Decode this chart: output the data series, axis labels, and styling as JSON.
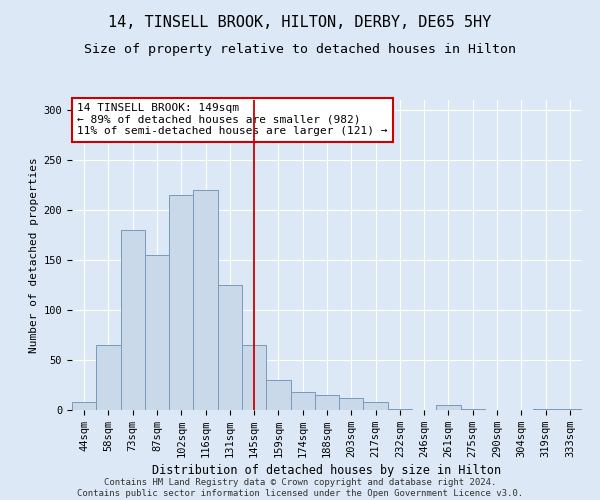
{
  "title": "14, TINSELL BROOK, HILTON, DERBY, DE65 5HY",
  "subtitle": "Size of property relative to detached houses in Hilton",
  "xlabel": "Distribution of detached houses by size in Hilton",
  "ylabel": "Number of detached properties",
  "categories": [
    "44sqm",
    "58sqm",
    "73sqm",
    "87sqm",
    "102sqm",
    "116sqm",
    "131sqm",
    "145sqm",
    "159sqm",
    "174sqm",
    "188sqm",
    "203sqm",
    "217sqm",
    "232sqm",
    "246sqm",
    "261sqm",
    "275sqm",
    "290sqm",
    "304sqm",
    "319sqm",
    "333sqm"
  ],
  "values": [
    8,
    65,
    180,
    155,
    215,
    220,
    125,
    65,
    30,
    18,
    15,
    12,
    8,
    1,
    0,
    5,
    1,
    0,
    0,
    1,
    1
  ],
  "bar_color": "#c9d9ea",
  "bar_edge_color": "#7799bb",
  "vline_x": 7,
  "vline_color": "#cc0000",
  "annotation_text": "14 TINSELL BROOK: 149sqm\n← 89% of detached houses are smaller (982)\n11% of semi-detached houses are larger (121) →",
  "annotation_box_color": "#ffffff",
  "annotation_box_edge_color": "#cc0000",
  "bg_color": "#dce8f5",
  "plot_bg_color": "#dce8f5",
  "grid_color": "#ffffff",
  "footer_line1": "Contains HM Land Registry data © Crown copyright and database right 2024.",
  "footer_line2": "Contains public sector information licensed under the Open Government Licence v3.0.",
  "ylim": [
    0,
    310
  ],
  "yticks": [
    0,
    50,
    100,
    150,
    200,
    250,
    300
  ],
  "title_fontsize": 11,
  "subtitle_fontsize": 9.5,
  "xlabel_fontsize": 8.5,
  "ylabel_fontsize": 8,
  "tick_fontsize": 7.5,
  "annotation_fontsize": 8,
  "footer_fontsize": 6.5
}
